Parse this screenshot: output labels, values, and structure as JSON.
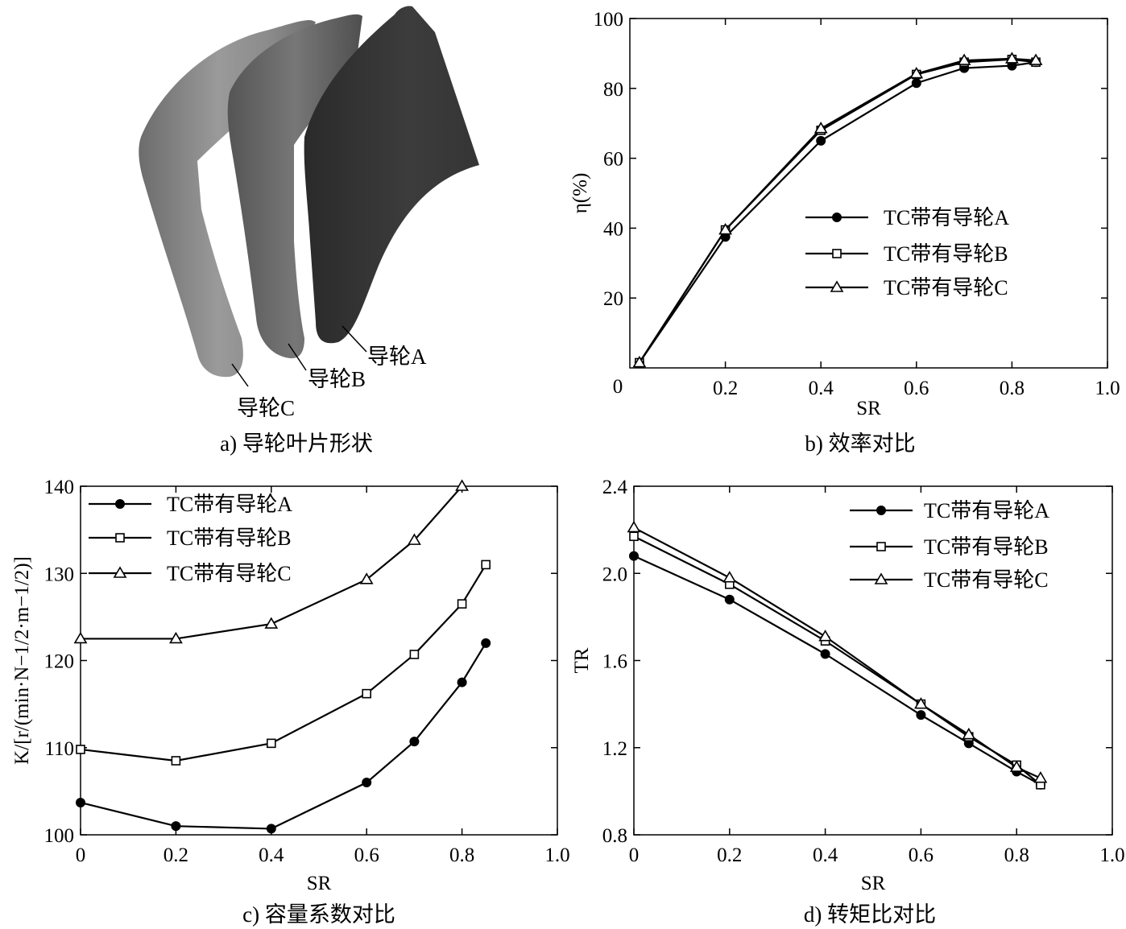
{
  "panel_a": {
    "caption": "a) 导轮叶片形状",
    "labels": [
      "导轮A",
      "导轮B",
      "导轮C"
    ]
  },
  "chart_data": [
    {
      "type": "line",
      "id": "b",
      "caption": "b) 效率对比",
      "xlabel": "SR",
      "ylabel": "η(%)",
      "xlim": [
        0,
        1.0
      ],
      "ylim": [
        0,
        100
      ],
      "xticks": [
        0.2,
        0.4,
        0.6,
        0.8,
        1.0
      ],
      "xticklabels": [
        "0.2",
        "0.4",
        "0.6",
        "0.8",
        "1.0"
      ],
      "yticks": [
        20,
        40,
        60,
        80,
        100
      ],
      "yticklabels": [
        "20",
        "40",
        "60",
        "80",
        "100"
      ],
      "origin_label": "0",
      "legend_position": "center-right",
      "series": [
        {
          "name": "TC带有导轮A",
          "marker": "circle",
          "x": [
            0.02,
            0.2,
            0.4,
            0.6,
            0.7,
            0.8,
            0.85
          ],
          "y": [
            1.5,
            37.5,
            65,
            81.5,
            85.8,
            86.5,
            87.5
          ]
        },
        {
          "name": "TC带有导轮B",
          "marker": "square",
          "x": [
            0.02,
            0.2,
            0.4,
            0.6,
            0.7,
            0.8,
            0.85
          ],
          "y": [
            1.5,
            39.5,
            68,
            84,
            87.5,
            88.3,
            87.5
          ]
        },
        {
          "name": "TC带有导轮C",
          "marker": "triangle",
          "x": [
            0.02,
            0.2,
            0.4,
            0.6,
            0.7,
            0.8,
            0.85
          ],
          "y": [
            1.5,
            39.5,
            68.5,
            84.2,
            88,
            88.5,
            88
          ]
        }
      ]
    },
    {
      "type": "line",
      "id": "c",
      "caption": "c) 容量系数对比",
      "xlabel": "SR",
      "ylabel": "K/[r/(min·N−1/2·m−1/2)]",
      "xlim": [
        0,
        1.0
      ],
      "ylim": [
        100,
        140
      ],
      "xticks": [
        0,
        0.2,
        0.4,
        0.6,
        0.8,
        1.0
      ],
      "xticklabels": [
        "0",
        "0.2",
        "0.4",
        "0.6",
        "0.8",
        "1.0"
      ],
      "yticks": [
        100,
        110,
        120,
        130,
        140
      ],
      "yticklabels": [
        "100",
        "110",
        "120",
        "130",
        "140"
      ],
      "legend_position": "top-left",
      "series": [
        {
          "name": "TC带有导轮A",
          "marker": "circle",
          "x": [
            0,
            0.2,
            0.4,
            0.6,
            0.7,
            0.8,
            0.85
          ],
          "y": [
            103.7,
            101,
            100.7,
            106,
            110.7,
            117.5,
            122
          ]
        },
        {
          "name": "TC带有导轮B",
          "marker": "square",
          "x": [
            0,
            0.2,
            0.4,
            0.6,
            0.7,
            0.8,
            0.85
          ],
          "y": [
            109.8,
            108.5,
            110.5,
            116.2,
            120.7,
            126.5,
            131
          ]
        },
        {
          "name": "TC带有导轮C",
          "marker": "triangle",
          "x": [
            0,
            0.2,
            0.4,
            0.6,
            0.7,
            0.8
          ],
          "y": [
            122.5,
            122.5,
            124.2,
            129.3,
            133.8,
            140
          ]
        }
      ]
    },
    {
      "type": "line",
      "id": "d",
      "caption": "d) 转矩比对比",
      "xlabel": "SR",
      "ylabel": "TR",
      "xlim": [
        0,
        1.0
      ],
      "ylim": [
        0.8,
        2.4
      ],
      "xticks": [
        0,
        0.2,
        0.4,
        0.6,
        0.8,
        1.0
      ],
      "xticklabels": [
        "0",
        "0.2",
        "0.4",
        "0.6",
        "0.8",
        "1.0"
      ],
      "yticks": [
        0.8,
        1.2,
        1.6,
        2.0,
        2.4
      ],
      "yticklabels": [
        "0.8",
        "1.2",
        "1.6",
        "2.0",
        "2.4"
      ],
      "legend_position": "top-right",
      "series": [
        {
          "name": "TC带有导轮A",
          "marker": "circle",
          "x": [
            0,
            0.2,
            0.4,
            0.6,
            0.7,
            0.8,
            0.85
          ],
          "y": [
            2.08,
            1.88,
            1.63,
            1.35,
            1.22,
            1.09,
            1.03
          ]
        },
        {
          "name": "TC带有导轮B",
          "marker": "square",
          "x": [
            0,
            0.2,
            0.4,
            0.6,
            0.7,
            0.8,
            0.85
          ],
          "y": [
            2.17,
            1.95,
            1.69,
            1.4,
            1.25,
            1.12,
            1.03
          ]
        },
        {
          "name": "TC带有导轮C",
          "marker": "triangle",
          "x": [
            0,
            0.2,
            0.4,
            0.6,
            0.7,
            0.8,
            0.85
          ],
          "y": [
            2.21,
            1.98,
            1.71,
            1.4,
            1.26,
            1.11,
            1.06
          ]
        }
      ]
    }
  ]
}
